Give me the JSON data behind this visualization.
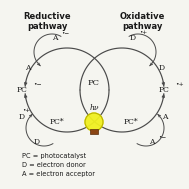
{
  "title_left": "Reductive\npathway",
  "title_right": "Oxidative\npathway",
  "legend": [
    "PC = photocatalyst",
    "D = electron donor",
    "A = electron acceptor"
  ],
  "bg_color": "#f5f5f0",
  "arrow_color": "#4a4a4a",
  "text_color": "#1a1a1a",
  "font_size": 5.5,
  "legend_font_size": 4.8,
  "title_font_size": 6.0
}
